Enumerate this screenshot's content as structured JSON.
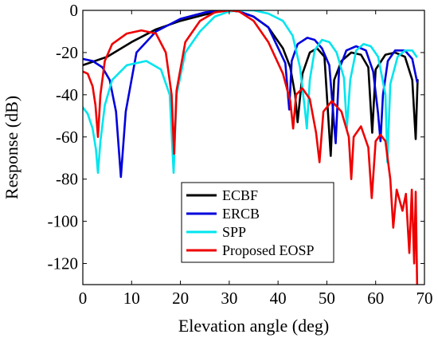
{
  "chart_data": {
    "type": "line",
    "xlabel": "Elevation angle (deg)",
    "ylabel": "Response (dB)",
    "xlim": [
      0,
      70
    ],
    "ylim": [
      -130,
      0
    ],
    "xticks": [
      0,
      10,
      20,
      30,
      40,
      50,
      60,
      70
    ],
    "yticks": [
      0,
      -20,
      -40,
      -60,
      -80,
      -100,
      -120
    ],
    "grid": false,
    "legend_position": "bottom-center",
    "series": [
      {
        "name": "ECBF",
        "color": "#000000",
        "x": [
          0,
          5,
          10,
          15,
          20,
          25,
          28,
          30,
          32,
          35,
          38,
          41,
          42.5,
          43.5,
          44,
          45,
          46.5,
          48,
          49.5,
          50.8,
          51.5,
          53,
          55,
          57,
          58.5,
          59.3,
          60,
          62,
          64,
          66,
          67.5,
          68.2,
          68.6
        ],
        "y": [
          -26,
          -22,
          -15,
          -9,
          -5,
          -2,
          -0.5,
          0,
          -0.5,
          -3,
          -8,
          -18,
          -27,
          -40,
          -53,
          -30,
          -20,
          -18,
          -22,
          -69,
          -33,
          -24,
          -20,
          -21,
          -27,
          -58,
          -28,
          -21,
          -20,
          -22,
          -33,
          -61,
          -33
        ]
      },
      {
        "name": "ERCB",
        "color": "#0000dd",
        "x": [
          0,
          2,
          4,
          5.5,
          6.8,
          7.8,
          8.8,
          11,
          15,
          20,
          25,
          28,
          30,
          32,
          35,
          38,
          41.5,
          42.3,
          42.8,
          44,
          46,
          47.5,
          49,
          50.5,
          51.8,
          52.5,
          54,
          56,
          58,
          59.5,
          60.5,
          61,
          61.5,
          62.5,
          64,
          66,
          67.5,
          68.5
        ],
        "y": [
          -23,
          -24,
          -27,
          -33,
          -48,
          -79,
          -48,
          -20,
          -10,
          -4,
          -1,
          -0.2,
          0,
          -0.5,
          -3,
          -8,
          -25,
          -47,
          -24,
          -16,
          -13,
          -14,
          -18,
          -26,
          -63,
          -28,
          -19,
          -17,
          -19,
          -29,
          -49,
          -62,
          -40,
          -24,
          -19,
          -19,
          -23,
          -34
        ]
      },
      {
        "name": "SPP",
        "color": "#00e5ee",
        "x": [
          0,
          1,
          2,
          2.7,
          3.1,
          3.6,
          4.5,
          6,
          9,
          13,
          16,
          17.8,
          18.6,
          19.2,
          21,
          24,
          27,
          30,
          33,
          35,
          38,
          41,
          43,
          44.5,
          45.5,
          45.9,
          46.5,
          47.5,
          49,
          50.5,
          52,
          53.5,
          54.1,
          54.8,
          56,
          57.5,
          59,
          60.5,
          62,
          62.4,
          63,
          64.5,
          66,
          67.5,
          68.4
        ],
        "y": [
          -46,
          -49,
          -56,
          -66,
          -77,
          -62,
          -45,
          -33,
          -26,
          -24,
          -28,
          -40,
          -77,
          -40,
          -20,
          -10,
          -3,
          -0.5,
          0,
          0,
          -1.5,
          -5,
          -12,
          -27,
          -47,
          -56,
          -33,
          -19,
          -14,
          -15,
          -20,
          -32,
          -56,
          -33,
          -19,
          -16,
          -17,
          -22,
          -40,
          -72,
          -35,
          -22,
          -19,
          -19,
          -22
        ]
      },
      {
        "name": "Proposed EOSP",
        "color": "#ee0000",
        "x": [
          0,
          1,
          2,
          2.6,
          3.1,
          3.6,
          4.5,
          6,
          9,
          12,
          15,
          17,
          18.2,
          18.7,
          19.2,
          21,
          24,
          27,
          30,
          32,
          35,
          38,
          41,
          42.5,
          43.1,
          43.7,
          45,
          46.5,
          47.8,
          48.5,
          49.3,
          51,
          53,
          54.5,
          55,
          55.5,
          57,
          58.5,
          59.2,
          60,
          61,
          62,
          63,
          63.6,
          64.3,
          65.5,
          66.2,
          66.9,
          67.4,
          67.9,
          68.2,
          68.5
        ],
        "y": [
          -29,
          -30,
          -36,
          -45,
          -60,
          -40,
          -24,
          -16,
          -11,
          -9.5,
          -11,
          -20,
          -40,
          -68,
          -38,
          -15,
          -5,
          -1,
          0,
          -0.5,
          -5,
          -15,
          -30,
          -43,
          -56,
          -40,
          -37,
          -42,
          -58,
          -72,
          -48,
          -43,
          -48,
          -60,
          -80,
          -60,
          -55,
          -65,
          -89,
          -62,
          -59,
          -62,
          -80,
          -103,
          -85,
          -95,
          -87,
          -115,
          -85,
          -120,
          -86,
          -130
        ]
      }
    ]
  }
}
